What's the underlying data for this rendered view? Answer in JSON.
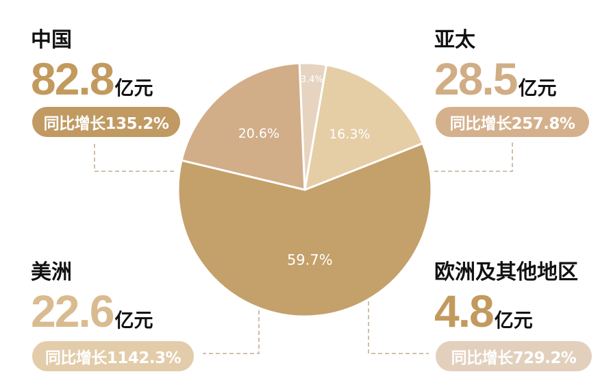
{
  "chart_data": {
    "type": "pie",
    "slices": [
      {
        "label": "中国",
        "percent_label": "59.7%",
        "value": 59.7,
        "color": "#c4a06a"
      },
      {
        "label": "亚太",
        "percent_label": "20.6%",
        "value": 20.6,
        "color": "#d1ad88"
      },
      {
        "label": "欧洲及其他地区",
        "percent_label": "3.4%",
        "value": 3.4,
        "color": "#e6d4c0"
      },
      {
        "label": "美洲",
        "percent_label": "16.3%",
        "value": 16.3,
        "color": "#e5cda6"
      }
    ]
  },
  "regions": {
    "china": {
      "name": "中国",
      "amount": "82.8",
      "unit": "亿元",
      "growth": "同比增长135.2%"
    },
    "apac": {
      "name": "亚太",
      "amount": "28.5",
      "unit": "亿元",
      "growth": "同比增长257.8%"
    },
    "americas": {
      "name": "美洲",
      "amount": "22.6",
      "unit": "亿元",
      "growth": "同比增长1142.3%"
    },
    "europe_other": {
      "name": "欧洲及其他地区",
      "amount": "4.8",
      "unit": "亿元",
      "growth": "同比增长729.2%"
    }
  },
  "colors": {
    "amount_gold": "#c39a5e",
    "amount_light": "#d9bb8f",
    "pill_china": "#c09a62",
    "pill_apac": "#d4b08c",
    "pill_americas": "#e3ccaa",
    "pill_europe": "#e2d0bd",
    "connector": "#b49b80"
  }
}
